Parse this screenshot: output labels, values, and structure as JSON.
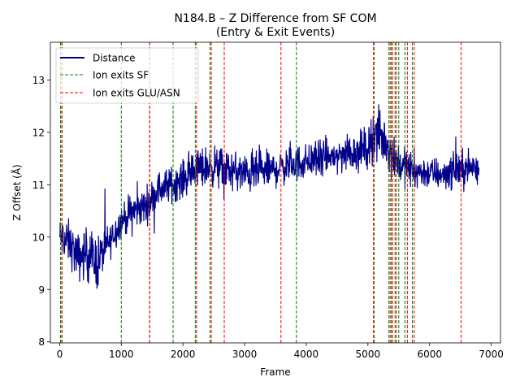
{
  "chart_data": {
    "type": "line",
    "title": "N184.B – Z Difference from SF COM",
    "subtitle": "(Entry & Exit Events)",
    "xlabel": "Frame",
    "ylabel": "Z Offset (Å)",
    "xlim": [
      -150,
      7150
    ],
    "ylim": [
      7.98,
      13.72
    ],
    "xticks": [
      0,
      1000,
      2000,
      3000,
      4000,
      5000,
      6000,
      7000
    ],
    "yticks": [
      8,
      9,
      10,
      11,
      12,
      13
    ],
    "grid": false,
    "legend_position": "top-left",
    "legend": [
      {
        "label": "Distance",
        "style": "solid",
        "color": "#00008b"
      },
      {
        "label": "Ion exits SF",
        "style": "dashed",
        "color": "#008000"
      },
      {
        "label": "Ion exits GLU/ASN",
        "style": "dashed",
        "color": "#ff0000"
      }
    ],
    "series": [
      {
        "name": "Distance",
        "color": "#00008b",
        "n_frames": 6800,
        "profile": [
          [
            0,
            10.0,
            0.5
          ],
          [
            150,
            9.9,
            0.55
          ],
          [
            300,
            9.6,
            0.6
          ],
          [
            450,
            9.7,
            0.65
          ],
          [
            600,
            9.5,
            0.7
          ],
          [
            800,
            9.9,
            0.45
          ],
          [
            1000,
            10.3,
            0.4
          ],
          [
            1200,
            10.5,
            0.45
          ],
          [
            1400,
            10.6,
            0.45
          ],
          [
            1600,
            10.9,
            0.45
          ],
          [
            1800,
            11.0,
            0.45
          ],
          [
            2000,
            11.1,
            0.45
          ],
          [
            2200,
            11.3,
            0.5
          ],
          [
            2500,
            11.35,
            0.5
          ],
          [
            3000,
            11.2,
            0.5
          ],
          [
            3500,
            11.3,
            0.45
          ],
          [
            4000,
            11.45,
            0.45
          ],
          [
            4500,
            11.55,
            0.45
          ],
          [
            5000,
            11.7,
            0.5
          ],
          [
            5100,
            12.0,
            0.7
          ],
          [
            5300,
            11.8,
            0.6
          ],
          [
            5500,
            11.4,
            0.5
          ],
          [
            5800,
            11.25,
            0.4
          ],
          [
            6200,
            11.2,
            0.4
          ],
          [
            6500,
            11.3,
            0.45
          ],
          [
            6800,
            11.35,
            0.45
          ]
        ]
      }
    ],
    "events_sf": [
      15,
      35,
      1000,
      1460,
      1840,
      2200,
      2440,
      3840,
      5100,
      5340,
      5380,
      5440,
      5500,
      5600,
      5720
    ],
    "events_glu_asn": [
      40,
      1460,
      2220,
      2460,
      2670,
      3590,
      5090,
      5360,
      5400,
      5460,
      5640,
      5750,
      6510
    ]
  }
}
